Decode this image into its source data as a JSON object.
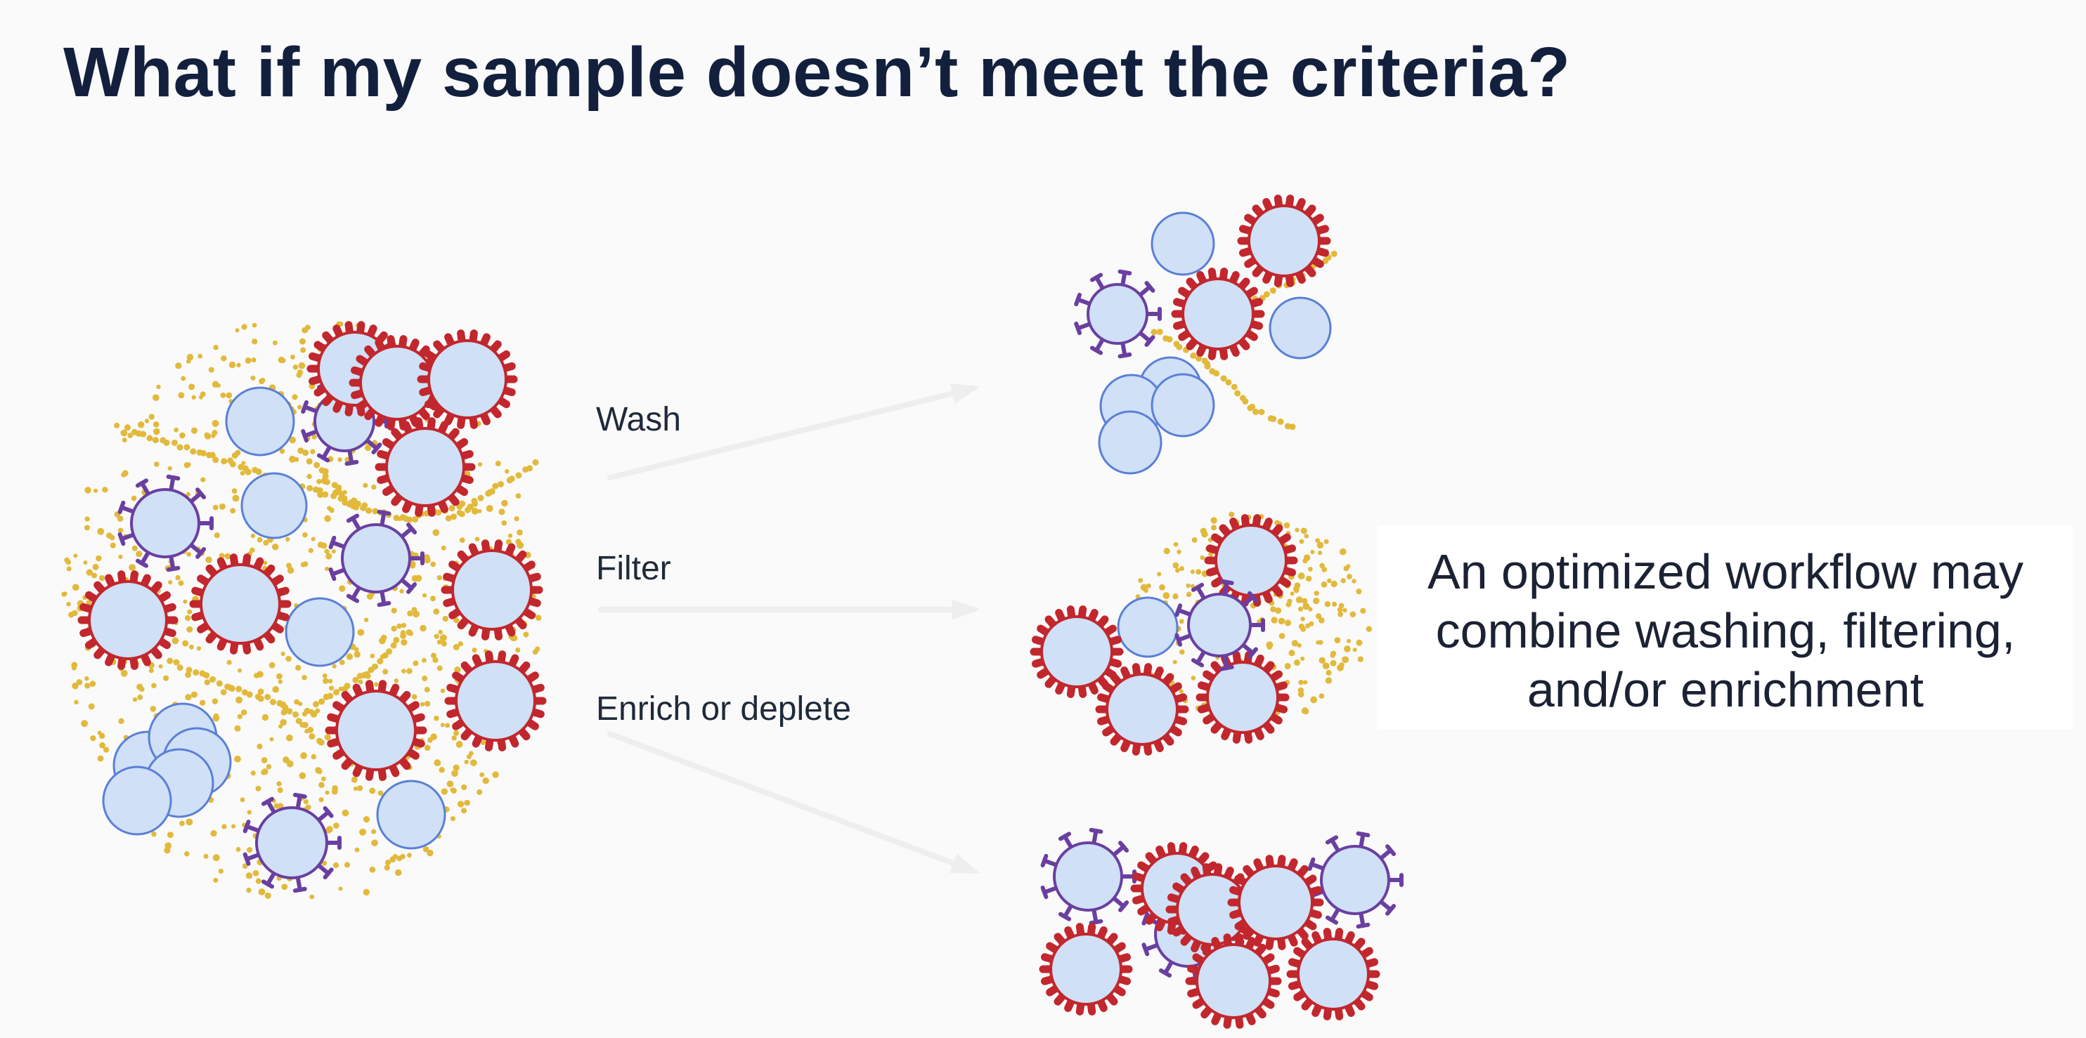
{
  "slide": {
    "title": "What if my sample doesn’t meet the criteria?"
  },
  "steps": [
    {
      "label": "Wash"
    },
    {
      "label": "Filter"
    },
    {
      "label": "Enrich or deplete"
    }
  ],
  "note": {
    "lines": [
      "An optimized workflow may",
      "combine washing, filtering,",
      "and/or enrichment"
    ]
  },
  "colors": {
    "title_text": "#13203d",
    "cell_fill": "#cfe0f7",
    "cell_outline": "#5a7fd6",
    "red_spikes": "#c1272d",
    "purple_spikes": "#6a3fa0",
    "debris": "#e2b93b",
    "arrow": "#eeeeee"
  },
  "icons": {
    "arrow": "right-arrow-icon",
    "plain_cell": "cell-icon",
    "red_spiked_cell": "red-spiked-cell-icon",
    "purple_spiked_cell": "purple-spiked-cell-icon"
  }
}
